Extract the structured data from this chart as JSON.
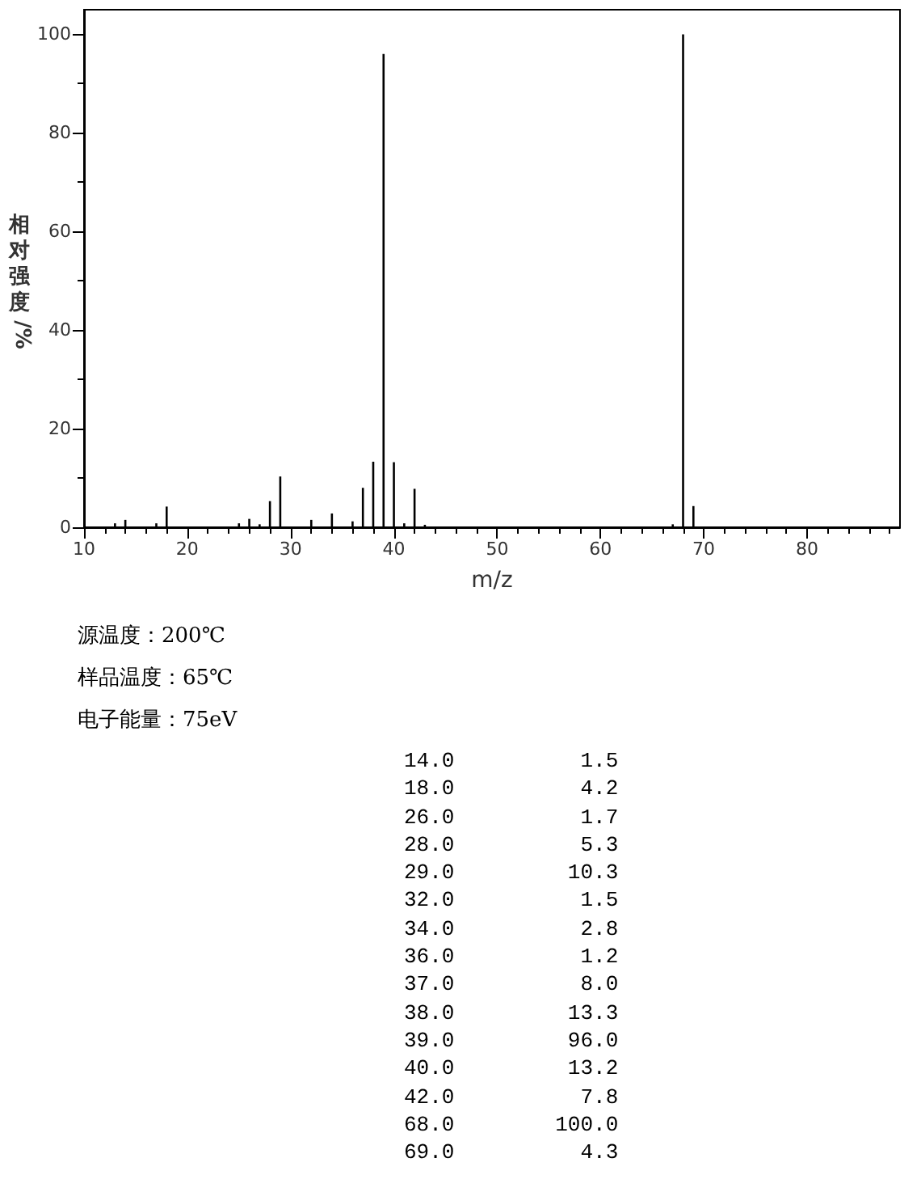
{
  "chart_data": {
    "type": "bar",
    "xlabel": "m/z",
    "ylabel": "相对强度/%",
    "x": [
      13,
      14,
      17,
      18,
      25,
      26,
      27,
      28,
      29,
      32,
      34,
      36,
      37,
      38,
      39,
      40,
      41,
      42,
      43,
      67,
      68,
      69
    ],
    "values": [
      0.8,
      1.5,
      0.8,
      4.2,
      0.8,
      1.7,
      0.6,
      5.3,
      10.3,
      1.5,
      2.8,
      1.2,
      8.0,
      13.3,
      96.0,
      13.2,
      0.8,
      7.8,
      0.5,
      0.6,
      100.0,
      4.3
    ],
    "color": "#000000",
    "xlim": [
      10,
      89
    ],
    "xticks": [
      10,
      20,
      30,
      40,
      50,
      60,
      70,
      80
    ],
    "ylim": [
      0,
      105
    ],
    "yticks": [
      0,
      20,
      40,
      60,
      80,
      100
    ],
    "grid": false,
    "annotations": [
      "源温度：200℃",
      "样品温度：65℃",
      "电子能量：75eV",
      "14.0          1.5",
      "18.0          4.2",
      "26.0          1.7",
      "28.0          5.3",
      "29.0         10.3",
      "32.0          1.5",
      "34.0          2.8",
      "36.0          1.2",
      "37.0          8.0",
      "38.0         13.3",
      "39.0         96.0",
      "40.0         13.2",
      "42.0          7.8",
      "68.0        100.0",
      "69.0          4.3"
    ]
  }
}
